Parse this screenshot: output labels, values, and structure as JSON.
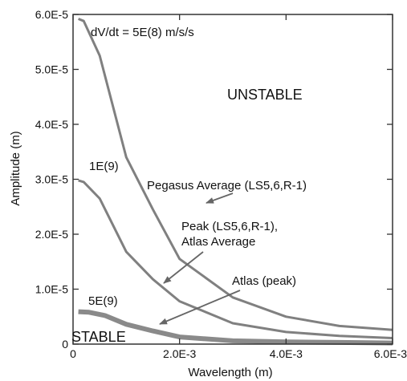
{
  "chart_data": {
    "type": "line",
    "title": "",
    "xlabel": "Wavelength (m)",
    "ylabel": "Amplitude (m)",
    "xlim": [
      0,
      0.006
    ],
    "ylim": [
      0,
      6e-05
    ],
    "x_ticks": [
      {
        "value": 0,
        "label": "0"
      },
      {
        "value": 0.002,
        "label": "2.0E-3"
      },
      {
        "value": 0.004,
        "label": "4.0E-3"
      },
      {
        "value": 0.006,
        "label": "6.0E-3"
      }
    ],
    "y_ticks": [
      {
        "value": 0,
        "label": "0"
      },
      {
        "value": 1e-05,
        "label": "1.0E-5"
      },
      {
        "value": 2e-05,
        "label": "2.0E-5"
      },
      {
        "value": 3e-05,
        "label": "3.0E-5"
      },
      {
        "value": 4e-05,
        "label": "4.0E-5"
      },
      {
        "value": 5e-05,
        "label": "5.0E-5"
      },
      {
        "value": 6e-05,
        "label": "6.0E-5"
      }
    ],
    "grid": false,
    "series": [
      {
        "name": "dV/dt = 5E(8) m/s/s",
        "color": "#808080",
        "x": [
          0.0001,
          0.0002,
          0.0005,
          0.001,
          0.0015,
          0.002,
          0.003,
          0.004,
          0.005,
          0.006
        ],
        "y": [
          5.92e-05,
          5.88e-05,
          5.25e-05,
          3.4e-05,
          2.45e-05,
          1.55e-05,
          8.5e-06,
          5e-06,
          3.3e-06,
          2.6e-06
        ]
      },
      {
        "name": "1E(9)",
        "color": "#808080",
        "x": [
          0.0001,
          0.0002,
          0.0005,
          0.001,
          0.0015,
          0.002,
          0.003,
          0.004,
          0.005,
          0.006
        ],
        "y": [
          2.98e-05,
          2.95e-05,
          2.65e-05,
          1.68e-05,
          1.18e-05,
          7.8e-06,
          3.8e-06,
          2.2e-06,
          1.5e-06,
          1.1e-06
        ]
      },
      {
        "name": "5E(9)",
        "color": "#8a8a8a",
        "x": [
          0.0001,
          0.0003,
          0.0006,
          0.001,
          0.0015,
          0.002,
          0.003,
          0.004,
          0.005,
          0.006
        ],
        "y": [
          5.9e-06,
          5.8e-06,
          5.2e-06,
          3.6e-06,
          2.4e-06,
          1.3e-06,
          6e-07,
          4e-07,
          3e-07,
          2e-07
        ]
      }
    ],
    "annotations": {
      "region_unstable": "UNSTABLE",
      "region_stable": "STABLE",
      "pegasus": "Pegasus Average (LS5,6,R-1)",
      "peak_line1": "Peak (LS5,6,R-1),",
      "peak_line2": "Atlas Average",
      "atlas_peak": "Atlas (peak)"
    }
  }
}
